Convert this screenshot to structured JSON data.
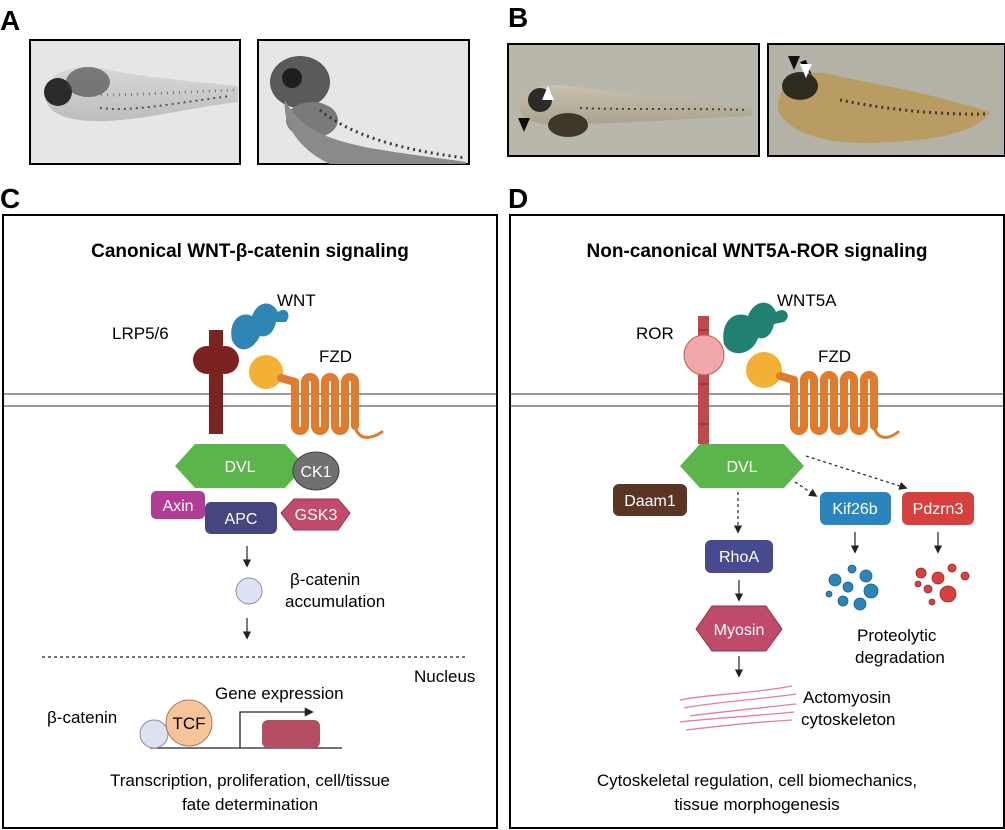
{
  "panels": {
    "a": {
      "label": "A"
    },
    "b": {
      "label": "B"
    },
    "c": {
      "label": "C",
      "title": "Canonical WNT-β-catenin signaling",
      "ligand": "WNT",
      "coreceptor": "LRP5/6",
      "receptor": "FZD",
      "dvl": "DVL",
      "ck1": "CK1",
      "axin": "Axin",
      "apc": "APC",
      "gsk3": "GSK3",
      "accum_line1": "β-catenin",
      "accum_line2": "accumulation",
      "nucleus": "Nucleus",
      "gene_expression": "Gene expression",
      "bcatenin": "β-catenin",
      "tcf": "TCF",
      "caption_line1": "Transcription, proliferation, cell/tissue",
      "caption_line2": "fate determination"
    },
    "d": {
      "label": "D",
      "title": "Non-canonical WNT5A-ROR signaling",
      "ligand": "WNT5A",
      "coreceptor": "ROR",
      "receptor": "FZD",
      "dvl": "DVL",
      "daam1": "Daam1",
      "kif26b": "Kif26b",
      "pdzrn3": "Pdzrn3",
      "rhoa": "RhoA",
      "myosin": "Myosin",
      "proteo_line1": "Proteolytic",
      "proteo_line2": "degradation",
      "acto_line1": "Actomyosin",
      "acto_line2": "cytoskeleton",
      "caption_line1": "Cytoskeletal regulation, cell biomechanics,",
      "caption_line2": "tissue morphogenesis"
    }
  },
  "colors": {
    "lrp": "#7a2320",
    "wnt": "#2e86b5",
    "wnt5a": "#1f8073",
    "fzd_ball": "#f2b134",
    "fzd_helix": "#e07a2c",
    "dvl": "#5cb54a",
    "ck1": "#707070",
    "axin": "#b03c93",
    "apc": "#45467f",
    "gsk3": "#c24b6b",
    "bcatenin": "#dde2f2",
    "tcf": "#f5c49a",
    "gene_box": "#b44f63",
    "ror_ball": "#f2a8a8",
    "ror_stem": "#c0484a",
    "daam1": "#5a3524",
    "kif26b": "#2a85be",
    "pdzrn3": "#d6403f",
    "rhoa": "#484a8f",
    "myosin": "#bf4a6a",
    "actin": "#e87aa0"
  }
}
